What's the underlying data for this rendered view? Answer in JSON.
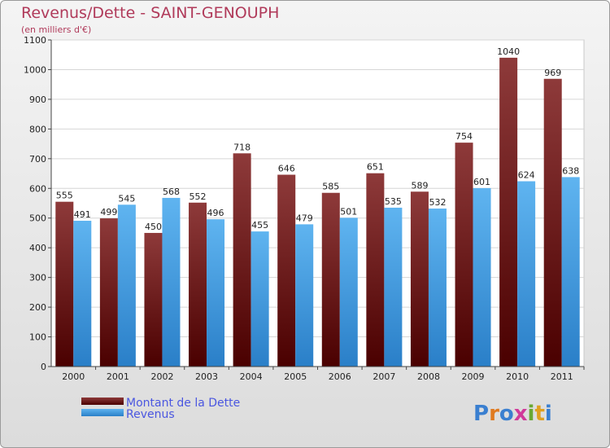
{
  "chart_data": {
    "type": "bar",
    "title": "Revenus/Dette - SAINT-GENOUPH",
    "subtitle": "(en milliers d'€)",
    "categories": [
      "2000",
      "2001",
      "2002",
      "2003",
      "2004",
      "2005",
      "2006",
      "2007",
      "2008",
      "2009",
      "2010",
      "2011"
    ],
    "series": [
      {
        "name": "Montant de la Dette",
        "color": "#7a1e1e",
        "values": [
          555,
          499,
          450,
          552,
          718,
          646,
          585,
          651,
          589,
          754,
          1040,
          969
        ]
      },
      {
        "name": "Revenus",
        "color": "#4da3e6",
        "values": [
          491,
          545,
          568,
          496,
          455,
          479,
          501,
          535,
          532,
          601,
          624,
          638
        ]
      }
    ],
    "ylim": [
      0,
      1100
    ],
    "yticks": [
      0,
      100,
      200,
      300,
      400,
      500,
      600,
      700,
      800,
      900,
      1000,
      1100
    ],
    "grid": true,
    "legend": "bottom-left"
  },
  "logo": {
    "text": "Proxiti"
  }
}
